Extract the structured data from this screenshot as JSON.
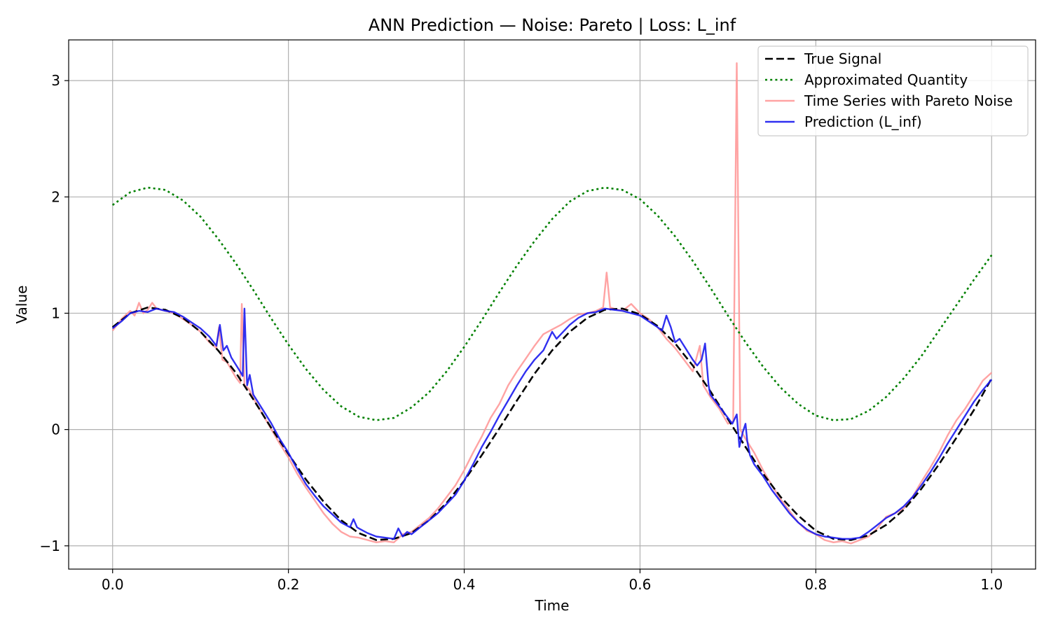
{
  "chart_data": {
    "type": "line",
    "title": "ANN Prediction — Noise: Pareto | Loss: L_inf",
    "xlabel": "Time",
    "ylabel": "Value",
    "xlim": [
      -0.05,
      1.05
    ],
    "ylim": [
      -1.2,
      3.35
    ],
    "xticks": [
      0.0,
      0.2,
      0.4,
      0.6,
      0.8,
      1.0
    ],
    "xtick_labels": [
      "0.0",
      "0.2",
      "0.4",
      "0.6",
      "0.8",
      "1.0"
    ],
    "yticks": [
      -1,
      0,
      1,
      2,
      3
    ],
    "ytick_labels": [
      "−1",
      "0",
      "1",
      "2",
      "3"
    ],
    "grid": true,
    "legend_position": "top-right",
    "series": [
      {
        "name": "True Signal",
        "color": "#000000",
        "style": "dashed",
        "x": [
          0.0,
          0.02,
          0.04,
          0.06,
          0.08,
          0.1,
          0.12,
          0.14,
          0.16,
          0.18,
          0.2,
          0.22,
          0.24,
          0.26,
          0.28,
          0.3,
          0.32,
          0.34,
          0.36,
          0.38,
          0.4,
          0.42,
          0.44,
          0.46,
          0.48,
          0.5,
          0.52,
          0.54,
          0.56,
          0.58,
          0.6,
          0.62,
          0.64,
          0.66,
          0.68,
          0.7,
          0.72,
          0.74,
          0.76,
          0.78,
          0.8,
          0.82,
          0.84,
          0.86,
          0.88,
          0.9,
          0.92,
          0.94,
          0.96,
          0.98,
          1.0
        ],
        "y": [
          0.88,
          1.0,
          1.05,
          1.03,
          0.96,
          0.84,
          0.68,
          0.49,
          0.26,
          0.02,
          -0.21,
          -0.43,
          -0.62,
          -0.78,
          -0.89,
          -0.95,
          -0.94,
          -0.89,
          -0.78,
          -0.63,
          -0.44,
          -0.22,
          0.01,
          0.25,
          0.48,
          0.68,
          0.84,
          0.96,
          1.03,
          1.04,
          0.99,
          0.89,
          0.74,
          0.55,
          0.33,
          0.09,
          -0.15,
          -0.38,
          -0.58,
          -0.74,
          -0.87,
          -0.94,
          -0.95,
          -0.91,
          -0.82,
          -0.69,
          -0.51,
          -0.3,
          -0.07,
          0.17,
          0.44
        ]
      },
      {
        "name": "Approximated Quantity",
        "color": "#008000",
        "style": "dotted",
        "x": [
          0.0,
          0.02,
          0.04,
          0.06,
          0.08,
          0.1,
          0.12,
          0.14,
          0.16,
          0.18,
          0.2,
          0.22,
          0.24,
          0.26,
          0.28,
          0.3,
          0.32,
          0.34,
          0.36,
          0.38,
          0.4,
          0.42,
          0.44,
          0.46,
          0.48,
          0.5,
          0.52,
          0.54,
          0.56,
          0.58,
          0.6,
          0.62,
          0.64,
          0.66,
          0.68,
          0.7,
          0.72,
          0.74,
          0.76,
          0.78,
          0.8,
          0.82,
          0.84,
          0.86,
          0.88,
          0.9,
          0.92,
          0.94,
          0.96,
          0.98,
          1.0
        ],
        "y": [
          1.93,
          2.04,
          2.08,
          2.06,
          1.97,
          1.83,
          1.64,
          1.43,
          1.2,
          0.96,
          0.73,
          0.52,
          0.34,
          0.2,
          0.11,
          0.08,
          0.1,
          0.19,
          0.32,
          0.5,
          0.71,
          0.94,
          1.18,
          1.41,
          1.62,
          1.81,
          1.96,
          2.05,
          2.08,
          2.06,
          1.98,
          1.84,
          1.66,
          1.45,
          1.22,
          0.98,
          0.75,
          0.54,
          0.36,
          0.22,
          0.12,
          0.08,
          0.09,
          0.16,
          0.28,
          0.44,
          0.63,
          0.85,
          1.07,
          1.29,
          1.5
        ]
      },
      {
        "name": "Time Series with Pareto Noise",
        "color": "#ff9999",
        "style": "solid",
        "x": [
          0.0,
          0.01,
          0.02,
          0.025,
          0.03,
          0.035,
          0.04,
          0.045,
          0.05,
          0.06,
          0.07,
          0.08,
          0.09,
          0.1,
          0.11,
          0.118,
          0.121,
          0.125,
          0.13,
          0.14,
          0.145,
          0.147,
          0.15,
          0.155,
          0.16,
          0.17,
          0.18,
          0.19,
          0.2,
          0.21,
          0.22,
          0.23,
          0.24,
          0.25,
          0.26,
          0.27,
          0.28,
          0.29,
          0.3,
          0.31,
          0.32,
          0.33,
          0.34,
          0.35,
          0.36,
          0.37,
          0.38,
          0.39,
          0.4,
          0.41,
          0.42,
          0.43,
          0.44,
          0.45,
          0.46,
          0.47,
          0.48,
          0.49,
          0.5,
          0.51,
          0.52,
          0.53,
          0.54,
          0.55,
          0.558,
          0.562,
          0.566,
          0.57,
          0.58,
          0.59,
          0.6,
          0.61,
          0.62,
          0.63,
          0.64,
          0.65,
          0.66,
          0.668,
          0.672,
          0.68,
          0.69,
          0.7,
          0.706,
          0.71,
          0.714,
          0.72,
          0.73,
          0.74,
          0.75,
          0.76,
          0.77,
          0.78,
          0.79,
          0.8,
          0.81,
          0.82,
          0.83,
          0.84,
          0.85,
          0.86,
          0.87,
          0.88,
          0.89,
          0.9,
          0.91,
          0.92,
          0.93,
          0.94,
          0.95,
          0.96,
          0.97,
          0.98,
          0.99,
          1.0
        ],
        "y": [
          0.85,
          0.95,
          1.02,
          0.98,
          1.09,
          1.0,
          1.03,
          1.09,
          1.04,
          1.02,
          1.0,
          0.95,
          0.9,
          0.84,
          0.75,
          0.7,
          0.88,
          0.6,
          0.58,
          0.45,
          0.4,
          1.08,
          0.38,
          0.35,
          0.27,
          0.14,
          0.01,
          -0.12,
          -0.24,
          -0.38,
          -0.5,
          -0.61,
          -0.72,
          -0.81,
          -0.88,
          -0.92,
          -0.93,
          -0.95,
          -0.97,
          -0.96,
          -0.97,
          -0.9,
          -0.88,
          -0.82,
          -0.76,
          -0.68,
          -0.58,
          -0.48,
          -0.35,
          -0.2,
          -0.06,
          0.1,
          0.22,
          0.38,
          0.5,
          0.61,
          0.72,
          0.82,
          0.86,
          0.9,
          0.95,
          0.99,
          1.0,
          1.02,
          1.05,
          1.35,
          1.05,
          1.04,
          1.02,
          1.08,
          1.0,
          0.95,
          0.88,
          0.78,
          0.7,
          0.6,
          0.5,
          0.72,
          0.38,
          0.28,
          0.18,
          0.05,
          0.07,
          3.15,
          0.0,
          -0.08,
          -0.2,
          -0.35,
          -0.48,
          -0.6,
          -0.7,
          -0.8,
          -0.87,
          -0.9,
          -0.95,
          -0.97,
          -0.96,
          -0.98,
          -0.95,
          -0.92,
          -0.85,
          -0.75,
          -0.72,
          -0.68,
          -0.58,
          -0.45,
          -0.33,
          -0.2,
          -0.05,
          0.08,
          0.18,
          0.3,
          0.42,
          0.49
        ]
      },
      {
        "name": "Prediction (L_inf)",
        "color": "#1a1aee",
        "style": "solid",
        "x": [
          0.0,
          0.01,
          0.02,
          0.03,
          0.04,
          0.05,
          0.06,
          0.07,
          0.08,
          0.09,
          0.1,
          0.11,
          0.118,
          0.122,
          0.126,
          0.13,
          0.135,
          0.14,
          0.145,
          0.148,
          0.15,
          0.153,
          0.156,
          0.16,
          0.17,
          0.18,
          0.19,
          0.2,
          0.21,
          0.22,
          0.23,
          0.24,
          0.25,
          0.26,
          0.27,
          0.274,
          0.278,
          0.28,
          0.29,
          0.3,
          0.31,
          0.32,
          0.325,
          0.33,
          0.335,
          0.34,
          0.35,
          0.36,
          0.37,
          0.38,
          0.39,
          0.4,
          0.41,
          0.42,
          0.43,
          0.44,
          0.45,
          0.46,
          0.47,
          0.48,
          0.49,
          0.5,
          0.505,
          0.51,
          0.52,
          0.53,
          0.54,
          0.55,
          0.56,
          0.57,
          0.58,
          0.59,
          0.6,
          0.61,
          0.62,
          0.625,
          0.63,
          0.635,
          0.64,
          0.645,
          0.65,
          0.66,
          0.665,
          0.67,
          0.674,
          0.678,
          0.68,
          0.69,
          0.7,
          0.705,
          0.71,
          0.713,
          0.717,
          0.72,
          0.722,
          0.725,
          0.73,
          0.74,
          0.75,
          0.76,
          0.77,
          0.78,
          0.79,
          0.8,
          0.81,
          0.82,
          0.83,
          0.84,
          0.85,
          0.86,
          0.87,
          0.88,
          0.89,
          0.9,
          0.91,
          0.92,
          0.93,
          0.94,
          0.95,
          0.96,
          0.97,
          0.98,
          0.99,
          1.0
        ],
        "y": [
          0.87,
          0.93,
          1.0,
          1.02,
          1.01,
          1.04,
          1.02,
          1.01,
          0.97,
          0.92,
          0.87,
          0.8,
          0.72,
          0.9,
          0.68,
          0.72,
          0.62,
          0.56,
          0.5,
          0.46,
          1.04,
          0.38,
          0.47,
          0.3,
          0.18,
          0.06,
          -0.08,
          -0.2,
          -0.34,
          -0.47,
          -0.57,
          -0.66,
          -0.73,
          -0.8,
          -0.84,
          -0.77,
          -0.84,
          -0.85,
          -0.89,
          -0.92,
          -0.93,
          -0.94,
          -0.85,
          -0.92,
          -0.88,
          -0.9,
          -0.84,
          -0.78,
          -0.72,
          -0.64,
          -0.56,
          -0.44,
          -0.3,
          -0.15,
          -0.02,
          0.12,
          0.25,
          0.38,
          0.5,
          0.6,
          0.68,
          0.84,
          0.78,
          0.82,
          0.9,
          0.96,
          1.0,
          1.01,
          1.04,
          1.03,
          1.02,
          1.0,
          0.98,
          0.93,
          0.88,
          0.85,
          0.98,
          0.88,
          0.75,
          0.78,
          0.72,
          0.6,
          0.55,
          0.6,
          0.74,
          0.38,
          0.3,
          0.2,
          0.1,
          0.05,
          0.13,
          -0.15,
          -0.02,
          0.05,
          -0.1,
          -0.22,
          -0.3,
          -0.4,
          -0.52,
          -0.62,
          -0.72,
          -0.8,
          -0.86,
          -0.9,
          -0.92,
          -0.93,
          -0.94,
          -0.94,
          -0.93,
          -0.88,
          -0.82,
          -0.76,
          -0.72,
          -0.66,
          -0.58,
          -0.48,
          -0.37,
          -0.25,
          -0.12,
          0.0,
          0.12,
          0.24,
          0.34,
          0.43
        ]
      }
    ]
  }
}
